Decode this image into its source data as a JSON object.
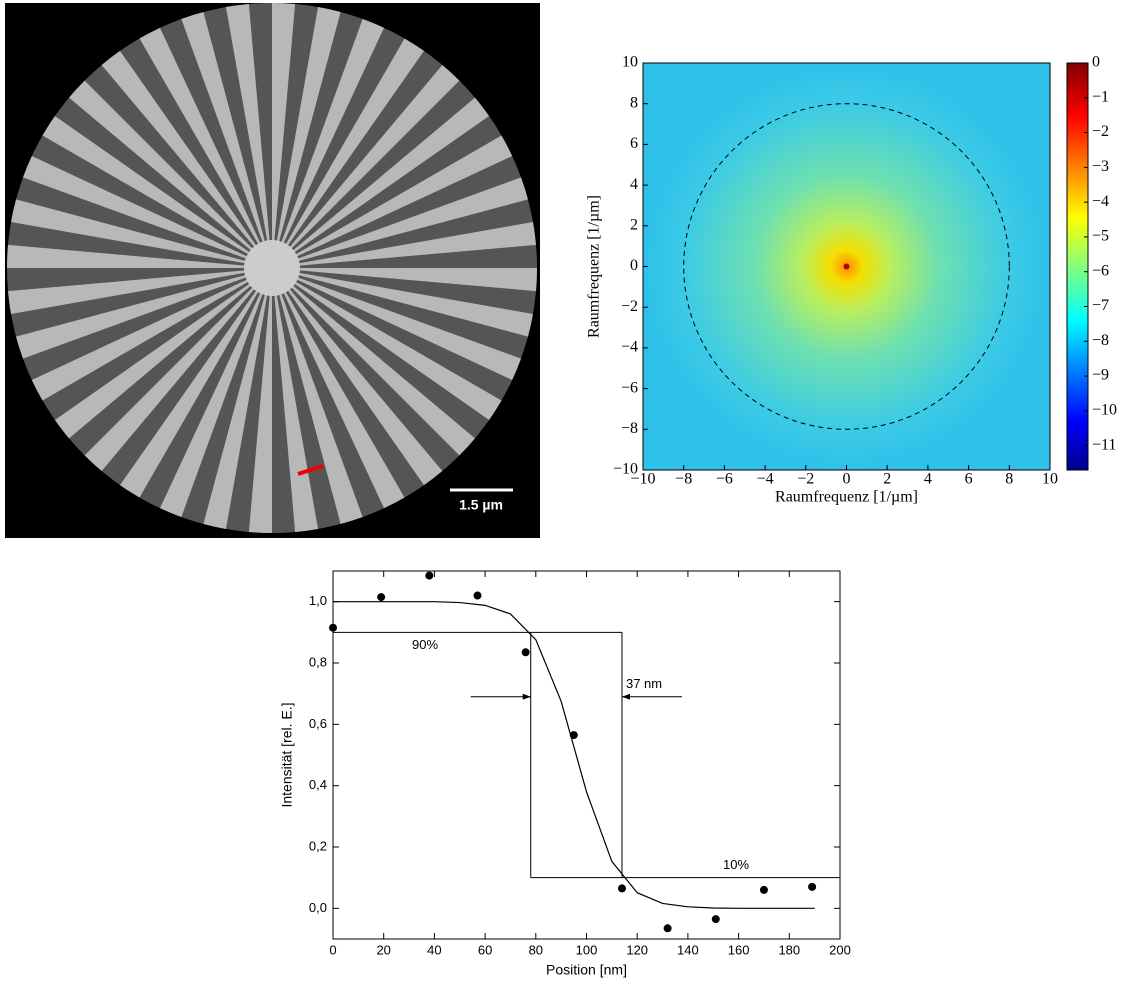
{
  "image": {
    "scale_bar_label": "1.5 µm"
  },
  "chart_data": [
    {
      "type": "heatmap",
      "xlabel": "Raumfrequenz [1/µm]",
      "ylabel": "Raumfrequenz [1/µm]",
      "xlim": [
        -10,
        10
      ],
      "ylim": [
        -10,
        10
      ],
      "xticks": [
        {
          "value": -10,
          "label": "−10"
        },
        {
          "value": -8,
          "label": "−8"
        },
        {
          "value": -6,
          "label": "−6"
        },
        {
          "value": -4,
          "label": "−4"
        },
        {
          "value": -2,
          "label": "−2"
        },
        0,
        2,
        4,
        6,
        8,
        10
      ],
      "yticks": [
        {
          "value": -10,
          "label": "−10"
        },
        {
          "value": -8,
          "label": "−8"
        },
        {
          "value": -6,
          "label": "−6"
        },
        {
          "value": -4,
          "label": "−4"
        },
        {
          "value": -2,
          "label": "−2"
        },
        0,
        2,
        4,
        6,
        8,
        10
      ],
      "circle_radius": 8,
      "colorbar": {
        "lim": [
          -11.7,
          0
        ],
        "ticks": [
          0,
          {
            "value": -1,
            "label": "−1"
          },
          {
            "value": -2,
            "label": "−2"
          },
          {
            "value": -3,
            "label": "−3"
          },
          {
            "value": -4,
            "label": "−4"
          },
          {
            "value": -5,
            "label": "−5"
          },
          {
            "value": -6,
            "label": "−6"
          },
          {
            "value": -7,
            "label": "−7"
          },
          {
            "value": -8,
            "label": "−8"
          },
          {
            "value": -9,
            "label": "−9"
          },
          {
            "value": -10,
            "label": "−10"
          },
          {
            "value": -11,
            "label": "−11"
          }
        ]
      }
    },
    {
      "type": "scatter",
      "xlabel": "Position [nm]",
      "ylabel": "Intensität [rel. E.]",
      "xlim": [
        0,
        200
      ],
      "ylim": [
        -0.1,
        1.1
      ],
      "xticks": [
        0,
        20,
        40,
        60,
        80,
        100,
        120,
        140,
        160,
        180,
        200
      ],
      "yticks": [
        {
          "value": 0,
          "label": "0,0"
        },
        {
          "value": 0.2,
          "label": "0,2"
        },
        {
          "value": 0.4,
          "label": "0,4"
        },
        {
          "value": 0.6,
          "label": "0,6"
        },
        {
          "value": 0.8,
          "label": "0,8"
        },
        {
          "value": 1.0,
          "label": "1,0"
        }
      ],
      "points": {
        "color": "#000000",
        "x": [
          0,
          19,
          38,
          57,
          76,
          95,
          114,
          132,
          151,
          170,
          189
        ],
        "y": [
          0.915,
          1.015,
          1.085,
          1.02,
          0.835,
          0.565,
          0.065,
          -0.065,
          -0.035,
          0.06,
          0.07
        ]
      },
      "fit": {
        "color": "#000000",
        "x": [
          0,
          10,
          20,
          30,
          40,
          50,
          60,
          70,
          80,
          90,
          100,
          110,
          120,
          130,
          140,
          150,
          160,
          170,
          180,
          190
        ],
        "y": [
          1.0,
          1.0,
          1.0,
          1.0,
          1.0,
          0.997,
          0.988,
          0.96,
          0.876,
          0.675,
          0.38,
          0.153,
          0.051,
          0.016,
          0.005,
          0.001,
          0.0,
          0.0,
          0.0,
          0.0
        ]
      },
      "levels": [
        {
          "value": 0.9,
          "label": "90%"
        },
        {
          "value": 0.1,
          "label": "10%"
        }
      ],
      "edges": [
        78,
        114
      ],
      "width_label": "37 nm"
    }
  ]
}
